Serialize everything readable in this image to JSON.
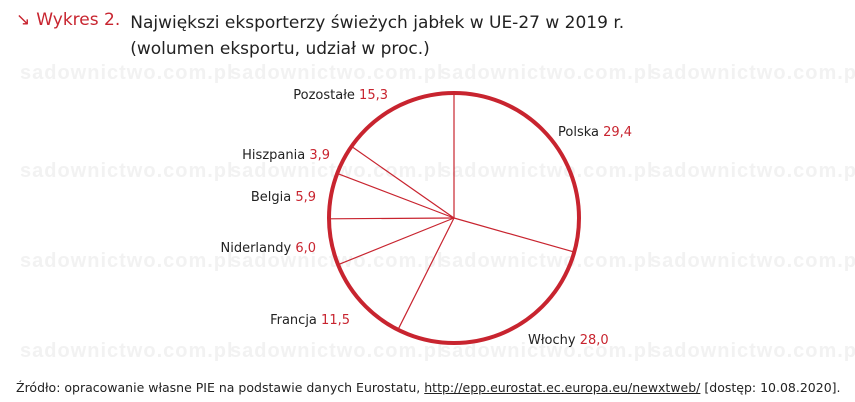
{
  "header": {
    "kicker": "Wykres 2.",
    "title_line1": "Największi eksporterzy świeżych jabłek w UE-27 w 2019 r.",
    "title_line2": "(wolumen eksportu, udział w proc.)"
  },
  "watermark": "sadownictwo.com.pl",
  "colors": {
    "accent": "#c8242f"
  },
  "chart_data": {
    "type": "pie",
    "title": "Największi eksporterzy świeżych jabłek w UE-27 w 2019 r.",
    "subtitle": "(wolumen eksportu, udział w proc.)",
    "slices": [
      {
        "label": "Polska",
        "value": 29.4,
        "display": "29,4"
      },
      {
        "label": "Włochy",
        "value": 28.0,
        "display": "28,0"
      },
      {
        "label": "Francja",
        "value": 11.5,
        "display": "11,5"
      },
      {
        "label": "Niderlandy",
        "value": 6.0,
        "display": "6,0"
      },
      {
        "label": "Belgia",
        "value": 5.9,
        "display": "5,9"
      },
      {
        "label": "Hiszpania",
        "value": 3.9,
        "display": "3,9"
      },
      {
        "label": "Pozostałe",
        "value": 15.3,
        "display": "15,3"
      }
    ]
  },
  "source": {
    "prefix": "Źródło: opracowanie własne PIE na podstawie danych Eurostatu,",
    "link": "http://epp.eurostat.ec.europa.eu/newxtweb/",
    "suffix": "[dostęp: 10.08.2020]."
  }
}
